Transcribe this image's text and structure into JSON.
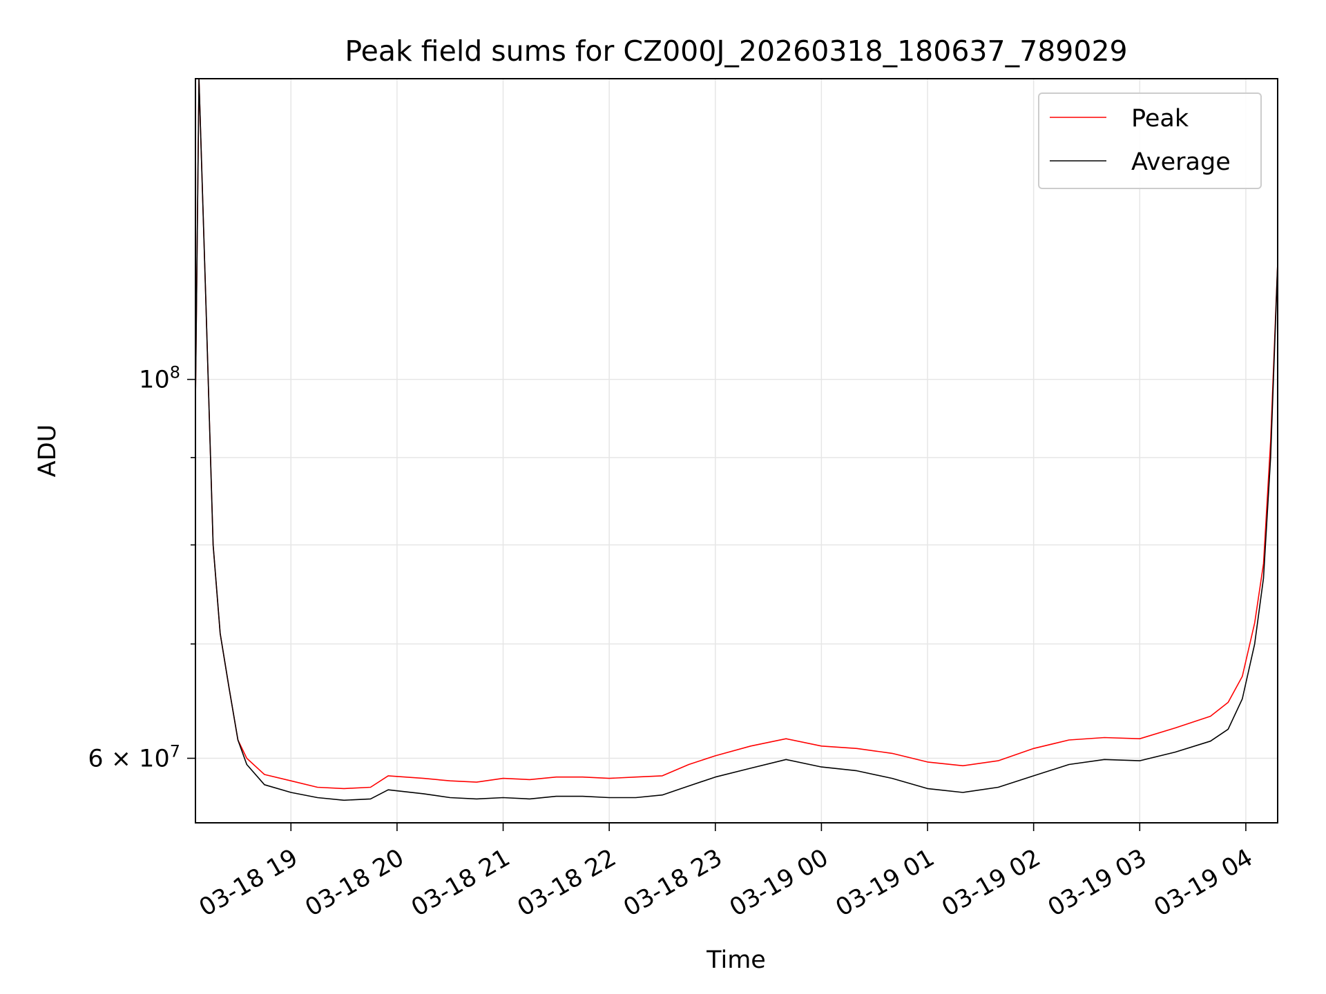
{
  "chart_data": {
    "type": "line",
    "title": "Peak field sums for CZ000J_20260318_180637_789029",
    "xlabel": "Time",
    "ylabel": "ADU",
    "yscale": "log",
    "xlim": [
      "2026-03-18T18:06",
      "2026-03-19T04:18"
    ],
    "ylim": [
      55000000,
      150000000
    ],
    "grid": true,
    "legend_position": "top-right",
    "x_ticks": [
      {
        "value": "2026-03-18T19:00",
        "label": "03-18 19"
      },
      {
        "value": "2026-03-18T20:00",
        "label": "03-18 20"
      },
      {
        "value": "2026-03-18T21:00",
        "label": "03-18 21"
      },
      {
        "value": "2026-03-18T22:00",
        "label": "03-18 22"
      },
      {
        "value": "2026-03-18T23:00",
        "label": "03-18 23"
      },
      {
        "value": "2026-03-19T00:00",
        "label": "03-19 00"
      },
      {
        "value": "2026-03-19T01:00",
        "label": "03-19 01"
      },
      {
        "value": "2026-03-19T02:00",
        "label": "03-19 02"
      },
      {
        "value": "2026-03-19T03:00",
        "label": "03-19 03"
      },
      {
        "value": "2026-03-19T04:00",
        "label": "03-19 04"
      }
    ],
    "y_major_ticks": [
      {
        "value": 60000000,
        "mantissa": "6",
        "exponent": "7"
      },
      {
        "value": 100000000,
        "mantissa": "",
        "exponent": "8"
      }
    ],
    "y_minor_ticks": [
      70000000,
      80000000,
      90000000
    ],
    "x": [
      "2026-03-18T18:06",
      "2026-03-18T18:08",
      "2026-03-18T18:12",
      "2026-03-18T18:16",
      "2026-03-18T18:20",
      "2026-03-18T18:25",
      "2026-03-18T18:30",
      "2026-03-18T18:35",
      "2026-03-18T18:45",
      "2026-03-18T19:00",
      "2026-03-18T19:15",
      "2026-03-18T19:30",
      "2026-03-18T19:45",
      "2026-03-18T19:55",
      "2026-03-18T20:15",
      "2026-03-18T20:30",
      "2026-03-18T20:45",
      "2026-03-18T21:00",
      "2026-03-18T21:15",
      "2026-03-18T21:30",
      "2026-03-18T21:45",
      "2026-03-18T22:00",
      "2026-03-18T22:15",
      "2026-03-18T22:30",
      "2026-03-18T22:45",
      "2026-03-18T23:00",
      "2026-03-18T23:20",
      "2026-03-18T23:40",
      "2026-03-19T00:00",
      "2026-03-19T00:20",
      "2026-03-19T00:40",
      "2026-03-19T01:00",
      "2026-03-19T01:20",
      "2026-03-19T01:40",
      "2026-03-19T02:00",
      "2026-03-19T02:20",
      "2026-03-19T02:40",
      "2026-03-19T03:00",
      "2026-03-19T03:20",
      "2026-03-19T03:40",
      "2026-03-19T03:50",
      "2026-03-19T03:58",
      "2026-03-19T04:05",
      "2026-03-19T04:10",
      "2026-03-19T04:14",
      "2026-03-19T04:18"
    ],
    "series": [
      {
        "name": "Peak",
        "color": "#ff0000",
        "values": [
          97000000,
          150000000,
          110000000,
          80000000,
          71000000,
          66000000,
          61500000,
          60000000,
          58700000,
          58200000,
          57700000,
          57600000,
          57700000,
          58600000,
          58400000,
          58200000,
          58100000,
          58400000,
          58300000,
          58500000,
          58500000,
          58400000,
          58500000,
          58600000,
          59500000,
          60200000,
          61000000,
          61600000,
          61000000,
          60800000,
          60400000,
          59700000,
          59400000,
          59800000,
          60800000,
          61500000,
          61700000,
          61600000,
          62500000,
          63500000,
          64700000,
          67000000,
          72000000,
          78000000,
          92000000,
          117000000
        ]
      },
      {
        "name": "Average",
        "color": "#000000",
        "values": [
          97000000,
          150000000,
          110000000,
          80000000,
          71000000,
          66000000,
          61500000,
          59500000,
          57900000,
          57300000,
          56900000,
          56700000,
          56800000,
          57500000,
          57200000,
          56900000,
          56800000,
          56900000,
          56800000,
          57000000,
          57000000,
          56900000,
          56900000,
          57100000,
          57800000,
          58500000,
          59200000,
          59900000,
          59300000,
          59000000,
          58400000,
          57600000,
          57300000,
          57700000,
          58600000,
          59500000,
          59900000,
          59800000,
          60500000,
          61400000,
          62400000,
          65000000,
          70000000,
          76500000,
          90000000,
          117000000
        ]
      }
    ]
  }
}
